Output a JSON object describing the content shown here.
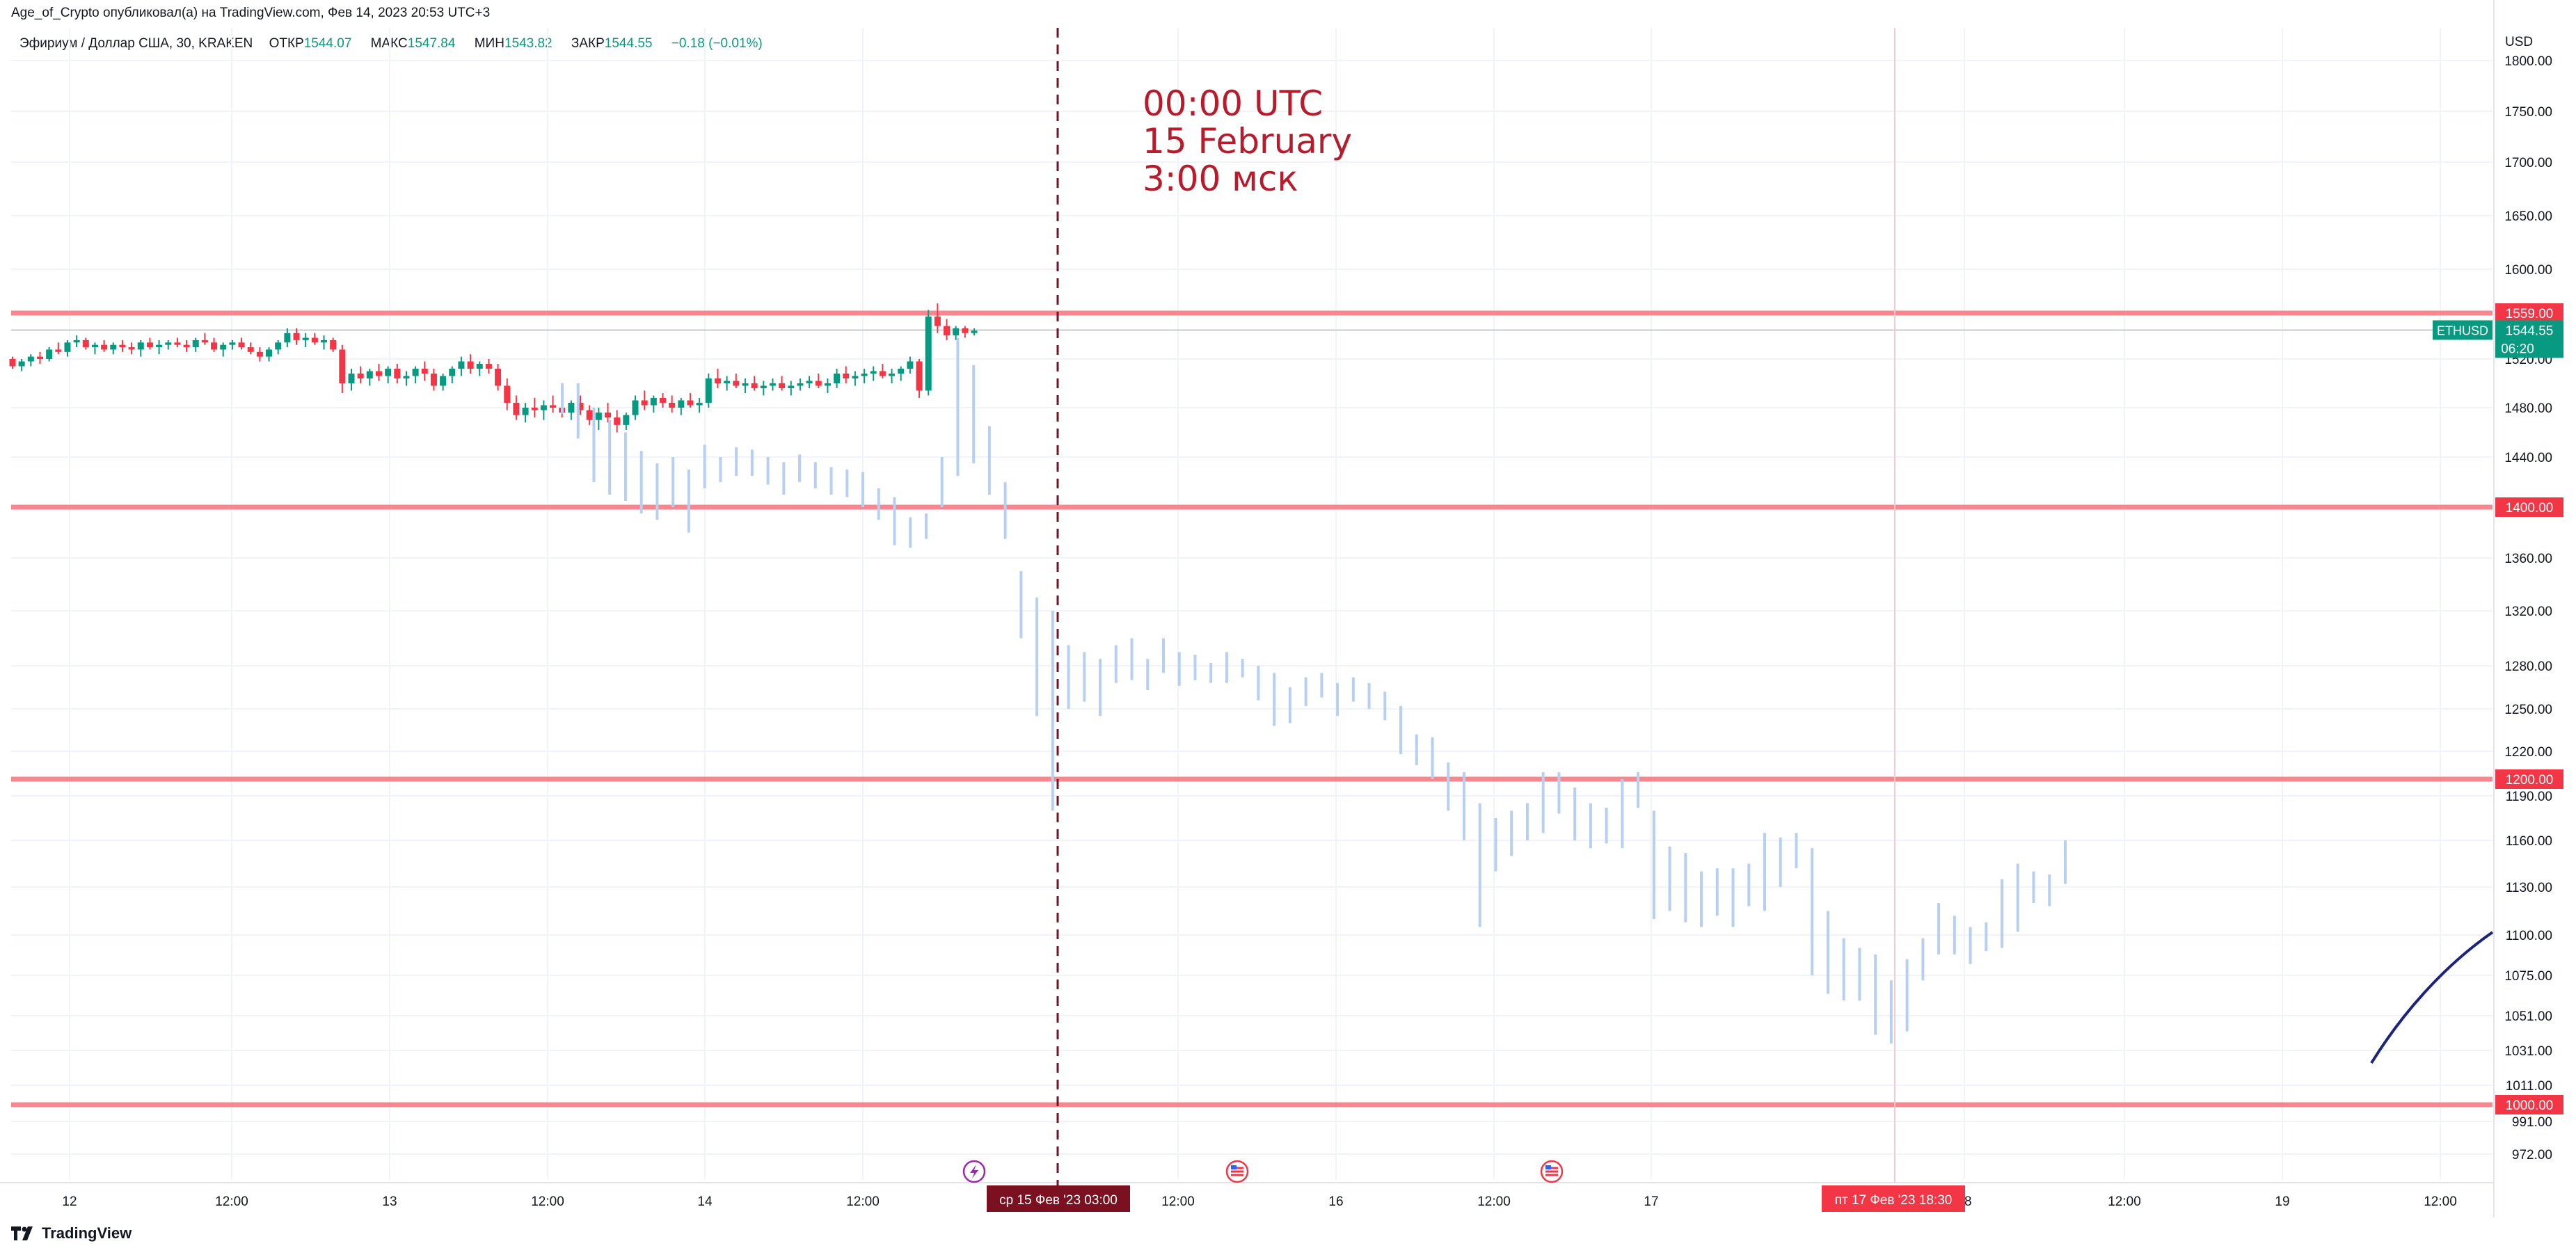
{
  "header": {
    "credit": "Age_of_Crypto опубликовал(а) на TradingView.com, Фев 14, 2023 20:53 UTC+3"
  },
  "legend": {
    "symbol": "Эфириум / Доллар США, 30, KRAKEN",
    "open_label": "ОТКР",
    "open": "1544.07",
    "high_label": "МАКС",
    "high": "1547.84",
    "low_label": "МИН",
    "low": "1543.82",
    "close_label": "ЗАКР",
    "close": "1544.55",
    "change": "−0.18 (−0.01%)"
  },
  "footer": {
    "brand": "TradingView"
  },
  "colors": {
    "up": "#089981",
    "down": "#f23645",
    "level": "#f7878f",
    "projection": "#b7d0f2",
    "vline": "#7a1020",
    "annotation": "#b71c2c",
    "curve": "#1a237e"
  },
  "chart_data": {
    "type": "candlestick",
    "currency": "USD",
    "y_ticks": [
      "1800.00",
      "1750.00",
      "1700.00",
      "1650.00",
      "1600.00",
      "1520.00",
      "1480.00",
      "1440.00",
      "1360.00",
      "1320.00",
      "1280.00",
      "1250.00",
      "1220.00",
      "1190.00",
      "1160.00",
      "1130.00",
      "1100.00",
      "1075.00",
      "1051.00",
      "1031.00",
      "1011.00",
      "991.00",
      "972.00"
    ],
    "x_ticks": [
      {
        "label": "12",
        "px": 100
      },
      {
        "label": "12:00",
        "px": 333
      },
      {
        "label": "13",
        "px": 560
      },
      {
        "label": "12:00",
        "px": 787
      },
      {
        "label": "14",
        "px": 1013
      },
      {
        "label": "12:00",
        "px": 1240
      },
      {
        "label": "12:00",
        "px": 1693
      },
      {
        "label": "16",
        "px": 1920
      },
      {
        "label": "12:00",
        "px": 2147
      },
      {
        "label": "17",
        "px": 2373
      },
      {
        "label": "18",
        "px": 2823
      },
      {
        "label": "12:00",
        "px": 3053
      },
      {
        "label": "19",
        "px": 3280
      },
      {
        "label": "12:00",
        "px": 3507
      }
    ],
    "levels": [
      {
        "value": 1559,
        "label": "1559.00"
      },
      {
        "value": 1400,
        "label": "1400.00"
      },
      {
        "value": 1200,
        "label": "1200.00"
      },
      {
        "value": 1000,
        "label": "1000.00"
      }
    ],
    "last_price": {
      "symbol": "ETHUSD",
      "value": "1544.55",
      "countdown": "06:20"
    },
    "vertical_marker": {
      "label": "ср 15 Фев '23   03:00"
    },
    "crosshair_marker": {
      "label": "пт 17 Фев '23   18:30"
    },
    "annotation": {
      "lines": [
        "00:00 UTC",
        "15 February",
        "3:00 мск"
      ]
    },
    "candles": [
      [
        1520,
        1522,
        1512,
        1514
      ],
      [
        1514,
        1520,
        1510,
        1518
      ],
      [
        1518,
        1524,
        1514,
        1522
      ],
      [
        1522,
        1526,
        1516,
        1520
      ],
      [
        1520,
        1530,
        1518,
        1528
      ],
      [
        1528,
        1534,
        1524,
        1526
      ],
      [
        1526,
        1536,
        1522,
        1534
      ],
      [
        1534,
        1540,
        1530,
        1536
      ],
      [
        1536,
        1538,
        1528,
        1530
      ],
      [
        1530,
        1534,
        1524,
        1532
      ],
      [
        1532,
        1536,
        1526,
        1528
      ],
      [
        1528,
        1534,
        1524,
        1532
      ],
      [
        1532,
        1536,
        1526,
        1530
      ],
      [
        1530,
        1534,
        1524,
        1528
      ],
      [
        1528,
        1536,
        1522,
        1534
      ],
      [
        1534,
        1538,
        1528,
        1530
      ],
      [
        1530,
        1536,
        1524,
        1532
      ],
      [
        1532,
        1536,
        1528,
        1534
      ],
      [
        1534,
        1538,
        1530,
        1532
      ],
      [
        1532,
        1536,
        1526,
        1530
      ],
      [
        1530,
        1538,
        1526,
        1536
      ],
      [
        1536,
        1542,
        1532,
        1534
      ],
      [
        1534,
        1538,
        1526,
        1528
      ],
      [
        1528,
        1534,
        1522,
        1532
      ],
      [
        1532,
        1536,
        1528,
        1534
      ],
      [
        1534,
        1538,
        1528,
        1530
      ],
      [
        1530,
        1534,
        1524,
        1526
      ],
      [
        1526,
        1530,
        1518,
        1522
      ],
      [
        1522,
        1530,
        1518,
        1528
      ],
      [
        1528,
        1536,
        1524,
        1534
      ],
      [
        1534,
        1546,
        1530,
        1542
      ],
      [
        1542,
        1546,
        1532,
        1536
      ],
      [
        1536,
        1542,
        1530,
        1538
      ],
      [
        1538,
        1542,
        1532,
        1534
      ],
      [
        1534,
        1540,
        1528,
        1536
      ],
      [
        1536,
        1538,
        1526,
        1528
      ],
      [
        1528,
        1532,
        1492,
        1500
      ],
      [
        1500,
        1512,
        1494,
        1508
      ],
      [
        1508,
        1514,
        1500,
        1504
      ],
      [
        1504,
        1512,
        1498,
        1510
      ],
      [
        1510,
        1516,
        1502,
        1506
      ],
      [
        1506,
        1514,
        1500,
        1512
      ],
      [
        1512,
        1516,
        1500,
        1504
      ],
      [
        1504,
        1510,
        1498,
        1506
      ],
      [
        1506,
        1514,
        1500,
        1512
      ],
      [
        1512,
        1518,
        1502,
        1508
      ],
      [
        1508,
        1512,
        1494,
        1498
      ],
      [
        1498,
        1508,
        1494,
        1506
      ],
      [
        1506,
        1514,
        1500,
        1512
      ],
      [
        1512,
        1522,
        1506,
        1518
      ],
      [
        1518,
        1524,
        1508,
        1512
      ],
      [
        1512,
        1518,
        1506,
        1516
      ],
      [
        1516,
        1520,
        1508,
        1512
      ],
      [
        1512,
        1516,
        1494,
        1498
      ],
      [
        1498,
        1504,
        1478,
        1484
      ],
      [
        1484,
        1490,
        1470,
        1474
      ],
      [
        1474,
        1484,
        1468,
        1480
      ],
      [
        1480,
        1488,
        1472,
        1478
      ],
      [
        1478,
        1486,
        1470,
        1482
      ],
      [
        1482,
        1490,
        1476,
        1480
      ],
      [
        1480,
        1488,
        1472,
        1476
      ],
      [
        1476,
        1486,
        1470,
        1484
      ],
      [
        1484,
        1490,
        1474,
        1478
      ],
      [
        1478,
        1482,
        1466,
        1470
      ],
      [
        1470,
        1480,
        1462,
        1476
      ],
      [
        1476,
        1484,
        1468,
        1472
      ],
      [
        1472,
        1478,
        1460,
        1466
      ],
      [
        1466,
        1476,
        1462,
        1474
      ],
      [
        1474,
        1490,
        1470,
        1486
      ],
      [
        1486,
        1494,
        1478,
        1482
      ],
      [
        1482,
        1490,
        1476,
        1488
      ],
      [
        1488,
        1492,
        1480,
        1484
      ],
      [
        1484,
        1490,
        1476,
        1480
      ],
      [
        1480,
        1488,
        1474,
        1486
      ],
      [
        1486,
        1492,
        1480,
        1482
      ],
      [
        1482,
        1488,
        1476,
        1484
      ],
      [
        1484,
        1508,
        1480,
        1504
      ],
      [
        1504,
        1512,
        1496,
        1500
      ],
      [
        1500,
        1506,
        1494,
        1502
      ],
      [
        1502,
        1508,
        1496,
        1498
      ],
      [
        1498,
        1504,
        1492,
        1500
      ],
      [
        1500,
        1506,
        1494,
        1496
      ],
      [
        1496,
        1502,
        1490,
        1498
      ],
      [
        1498,
        1504,
        1494,
        1500
      ],
      [
        1500,
        1506,
        1494,
        1496
      ],
      [
        1496,
        1502,
        1490,
        1498
      ],
      [
        1498,
        1504,
        1494,
        1500
      ],
      [
        1500,
        1506,
        1496,
        1502
      ],
      [
        1502,
        1508,
        1496,
        1498
      ],
      [
        1498,
        1504,
        1492,
        1500
      ],
      [
        1500,
        1512,
        1496,
        1508
      ],
      [
        1508,
        1514,
        1500,
        1504
      ],
      [
        1504,
        1510,
        1498,
        1506
      ],
      [
        1506,
        1512,
        1500,
        1508
      ],
      [
        1508,
        1514,
        1502,
        1510
      ],
      [
        1510,
        1516,
        1504,
        1506
      ],
      [
        1506,
        1512,
        1500,
        1508
      ],
      [
        1508,
        1514,
        1502,
        1512
      ],
      [
        1512,
        1522,
        1508,
        1518
      ],
      [
        1518,
        1520,
        1488,
        1494
      ],
      [
        1494,
        1562,
        1490,
        1556
      ],
      [
        1556,
        1568,
        1542,
        1548
      ],
      [
        1548,
        1554,
        1536,
        1540
      ],
      [
        1540,
        1548,
        1536,
        1546
      ],
      [
        1546,
        1548,
        1538,
        1542
      ],
      [
        1542,
        1546,
        1540,
        1544
      ]
    ],
    "projection_bars": [
      [
        1500,
        1475
      ],
      [
        1500,
        1455
      ],
      [
        1480,
        1420
      ],
      [
        1470,
        1410
      ],
      [
        1460,
        1405
      ],
      [
        1445,
        1395
      ],
      [
        1435,
        1390
      ],
      [
        1440,
        1400
      ],
      [
        1430,
        1380
      ],
      [
        1450,
        1415
      ],
      [
        1440,
        1420
      ],
      [
        1448,
        1425
      ],
      [
        1446,
        1425
      ],
      [
        1440,
        1418
      ],
      [
        1436,
        1410
      ],
      [
        1442,
        1420
      ],
      [
        1436,
        1415
      ],
      [
        1432,
        1410
      ],
      [
        1430,
        1408
      ],
      [
        1428,
        1400
      ],
      [
        1415,
        1390
      ],
      [
        1408,
        1370
      ],
      [
        1392,
        1368
      ],
      [
        1395,
        1375
      ],
      [
        1440,
        1400
      ],
      [
        1538,
        1425
      ],
      [
        1515,
        1435
      ],
      [
        1465,
        1410
      ],
      [
        1420,
        1375
      ],
      [
        1350,
        1300
      ],
      [
        1330,
        1245
      ],
      [
        1320,
        1180
      ],
      [
        1295,
        1250
      ],
      [
        1290,
        1255
      ],
      [
        1285,
        1245
      ],
      [
        1295,
        1268
      ],
      [
        1300,
        1270
      ],
      [
        1285,
        1263
      ],
      [
        1300,
        1275
      ],
      [
        1290,
        1266
      ],
      [
        1288,
        1270
      ],
      [
        1282,
        1268
      ],
      [
        1290,
        1268
      ],
      [
        1285,
        1272
      ],
      [
        1280,
        1256
      ],
      [
        1275,
        1238
      ],
      [
        1265,
        1240
      ],
      [
        1272,
        1252
      ],
      [
        1275,
        1258
      ],
      [
        1268,
        1245
      ],
      [
        1272,
        1255
      ],
      [
        1268,
        1250
      ],
      [
        1262,
        1242
      ],
      [
        1252,
        1218
      ],
      [
        1232,
        1210
      ],
      [
        1230,
        1200
      ],
      [
        1212,
        1180
      ],
      [
        1205,
        1160
      ],
      [
        1185,
        1105
      ],
      [
        1175,
        1140
      ],
      [
        1180,
        1150
      ],
      [
        1185,
        1160
      ],
      [
        1205,
        1165
      ],
      [
        1205,
        1178
      ],
      [
        1195,
        1160
      ],
      [
        1185,
        1155
      ],
      [
        1182,
        1158
      ],
      [
        1200,
        1155
      ],
      [
        1205,
        1182
      ],
      [
        1180,
        1110
      ],
      [
        1156,
        1115
      ],
      [
        1152,
        1108
      ],
      [
        1140,
        1105
      ],
      [
        1142,
        1112
      ],
      [
        1142,
        1105
      ],
      [
        1145,
        1118
      ],
      [
        1165,
        1115
      ],
      [
        1162,
        1130
      ],
      [
        1165,
        1142
      ],
      [
        1155,
        1075
      ],
      [
        1115,
        1064
      ],
      [
        1098,
        1060
      ],
      [
        1092,
        1060
      ],
      [
        1088,
        1040
      ],
      [
        1072,
        1035
      ],
      [
        1085,
        1042
      ],
      [
        1098,
        1072
      ],
      [
        1120,
        1088
      ],
      [
        1112,
        1088
      ],
      [
        1105,
        1082
      ],
      [
        1108,
        1090
      ],
      [
        1135,
        1092
      ],
      [
        1145,
        1102
      ],
      [
        1140,
        1120
      ],
      [
        1138,
        1118
      ],
      [
        1160,
        1132
      ]
    ]
  }
}
